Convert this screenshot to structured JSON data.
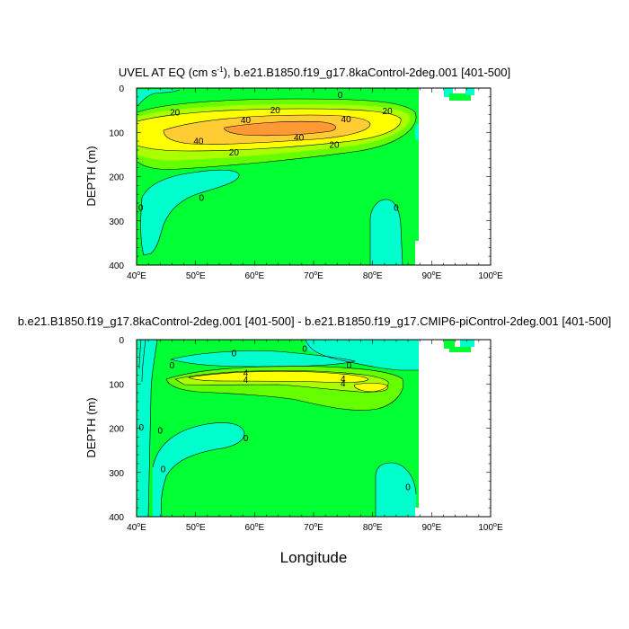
{
  "colors": {
    "green": "#00ff33",
    "aqua": "#00ffcc",
    "lightgreen": "#66ff00",
    "yellowgreen": "#aaff00",
    "yellow": "#ffff00",
    "gold": "#ffcc33",
    "orange": "#ff9933",
    "darkorange": "#ff8822",
    "white": "#ffffff"
  },
  "xlabel": "Longitude",
  "chart_data": [
    {
      "type": "contour",
      "title_main": "UVEL AT EQ (cm s",
      "title_sup": "-1",
      "title_rest": "), b.e21.B1850.f19_g17.8kaControl-2deg.001 [401-500]",
      "ylabel": "DEPTH (m)",
      "xlim": [
        40,
        100
      ],
      "ylim": [
        0,
        400
      ],
      "x_ticks": [
        40,
        50,
        60,
        70,
        80,
        90,
        100
      ],
      "x_tick_labels": [
        "40",
        "50",
        "60",
        "70",
        "80",
        "90",
        "100"
      ],
      "x_tick_suffix": "E",
      "y_ticks": [
        0,
        100,
        200,
        300,
        400
      ],
      "y_tick_labels": [
        "0",
        "100",
        "200",
        "300",
        "400"
      ],
      "contour_labels": [
        {
          "text": "0",
          "lon": 74.5,
          "depth": 15
        },
        {
          "text": "20",
          "lon": 46.5,
          "depth": 55
        },
        {
          "text": "20",
          "lon": 63.5,
          "depth": 50
        },
        {
          "text": "20",
          "lon": 82.5,
          "depth": 52
        },
        {
          "text": "40",
          "lon": 58.5,
          "depth": 72
        },
        {
          "text": "40",
          "lon": 75.5,
          "depth": 70
        },
        {
          "text": "40",
          "lon": 50.5,
          "depth": 120
        },
        {
          "text": "40",
          "lon": 67.5,
          "depth": 112
        },
        {
          "text": "20",
          "lon": 73.5,
          "depth": 128
        },
        {
          "text": "20",
          "lon": 56.5,
          "depth": 145
        },
        {
          "text": "0",
          "lon": 51,
          "depth": 248
        },
        {
          "text": "0",
          "lon": 40.7,
          "depth": 270
        },
        {
          "text": "0",
          "lon": 84,
          "depth": 270
        }
      ]
    },
    {
      "type": "contour",
      "title_main": "b.e21.B1850.f19_g17.8kaControl-2deg.001 [401-500] - b.e21.B1850.f19_g17.CMIP6-piControl-2deg.001 [401-500]",
      "title_sup": "",
      "title_rest": "",
      "ylabel": "DEPTH (m)",
      "xlim": [
        40,
        100
      ],
      "ylim": [
        0,
        400
      ],
      "x_ticks": [
        40,
        50,
        60,
        70,
        80,
        90,
        100
      ],
      "x_tick_labels": [
        "40",
        "50",
        "60",
        "70",
        "80",
        "90",
        "100"
      ],
      "x_tick_suffix": "E",
      "y_ticks": [
        0,
        100,
        200,
        300,
        400
      ],
      "y_tick_labels": [
        "0",
        "100",
        "200",
        "300",
        "400"
      ],
      "contour_labels": [
        {
          "text": "0",
          "lon": 56.5,
          "depth": 30
        },
        {
          "text": "0",
          "lon": 68.5,
          "depth": 20
        },
        {
          "text": "0",
          "lon": 46,
          "depth": 58
        },
        {
          "text": "0",
          "lon": 76,
          "depth": 58
        },
        {
          "text": "4",
          "lon": 58.5,
          "depth": 75
        },
        {
          "text": "4",
          "lon": 58.5,
          "depth": 90
        },
        {
          "text": "4",
          "lon": 75,
          "depth": 88
        },
        {
          "text": "4",
          "lon": 75,
          "depth": 98
        },
        {
          "text": "0",
          "lon": 40.8,
          "depth": 198
        },
        {
          "text": "0",
          "lon": 44,
          "depth": 205
        },
        {
          "text": "0",
          "lon": 58.5,
          "depth": 222
        },
        {
          "text": "0",
          "lon": 44.5,
          "depth": 292
        },
        {
          "text": "0",
          "lon": 86,
          "depth": 333
        }
      ]
    }
  ]
}
